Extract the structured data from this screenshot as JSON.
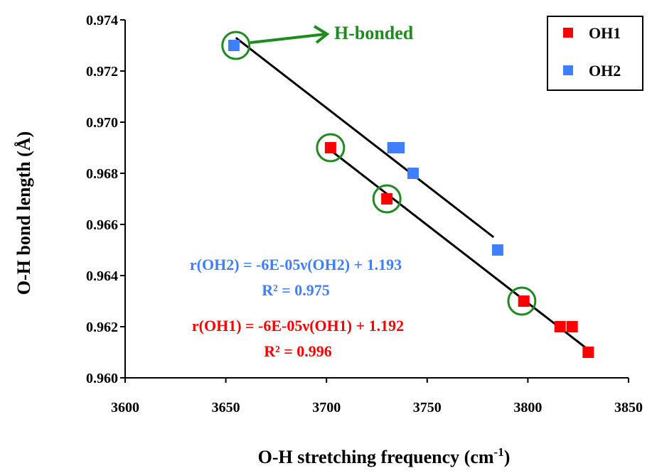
{
  "chart_data": {
    "type": "scatter",
    "xlabel": "O-H stretching frequency (cm",
    "xlabel_sup": "-1",
    "xlabel_tail": ")",
    "ylabel": "O-H bond length (Å)",
    "xlim": [
      3600,
      3850
    ],
    "ylim": [
      0.96,
      0.974
    ],
    "xticks": [
      "3600",
      "3650",
      "3700",
      "3750",
      "3800",
      "3850"
    ],
    "yticks": [
      "0.960",
      "0.962",
      "0.964",
      "0.966",
      "0.968",
      "0.970",
      "0.972",
      "0.974"
    ],
    "grid": false,
    "legend_position": "top-right",
    "series": [
      {
        "name": "OH1",
        "color": "#ff0000",
        "x": [
          3702,
          3730,
          3798,
          3816,
          3822,
          3830
        ],
        "y": [
          0.969,
          0.967,
          0.963,
          0.962,
          0.962,
          0.961
        ],
        "fit": {
          "x": [
            3702,
            3830
          ],
          "y": [
            0.9689,
            0.9611
          ]
        }
      },
      {
        "name": "OH2",
        "color": "#3f7fff",
        "x": [
          3654,
          3733,
          3736,
          3743,
          3785
        ],
        "y": [
          0.973,
          0.969,
          0.969,
          0.968,
          0.965
        ],
        "fit": {
          "x": [
            3655,
            3783
          ],
          "y": [
            0.9733,
            0.9655
          ]
        }
      }
    ],
    "highlight": {
      "label": "H-bonded",
      "color": "#1f8a1f",
      "points": [
        {
          "x": 3655,
          "y": 0.973
        },
        {
          "x": 3702,
          "y": 0.969
        },
        {
          "x": 3730,
          "y": 0.967
        },
        {
          "x": 3797,
          "y": 0.963
        }
      ]
    },
    "annotations": {
      "oh2_eq": "r(OH2) = -6E-05ν(OH2) + 1.193",
      "oh2_r2": "R² = 0.975",
      "oh1_eq": "r(OH1) = -6E-05ν(OH1) + 1.192",
      "oh1_r2": "R² = 0.996"
    }
  }
}
